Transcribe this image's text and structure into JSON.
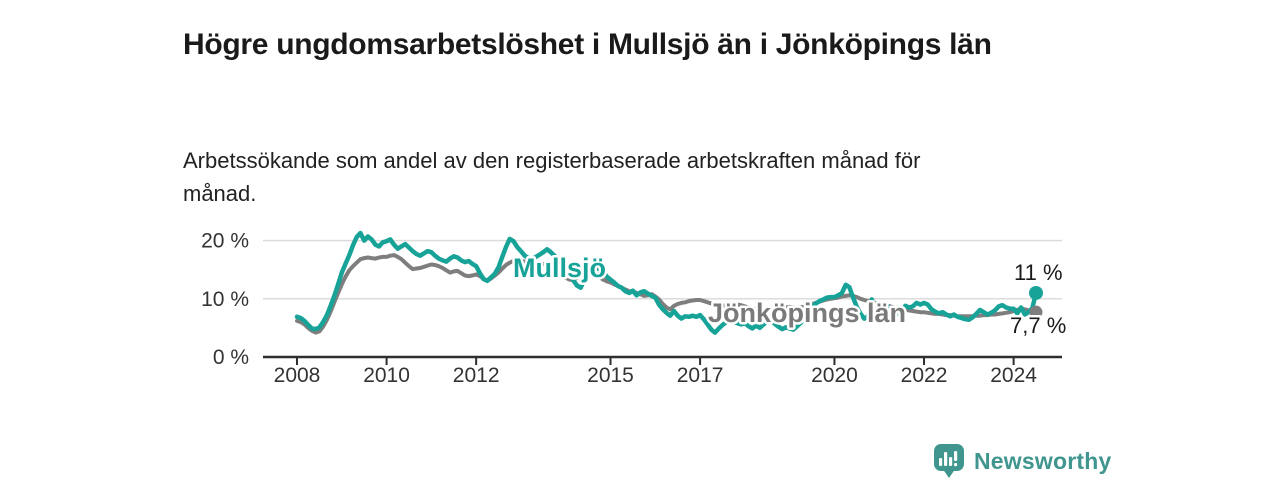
{
  "title": "Högre ungdomsarbetslöshet i Mullsjö än i Jönköpings län",
  "subtitle": "Arbetssökande som andel av den registerbaserade arbetskraften månad för månad.",
  "branding": {
    "logo_text": "Newsworthy",
    "logo_icon": "bar-chart-speech-bubble-icon",
    "logo_color": "#40968f"
  },
  "colors": {
    "mullsjo_teal": "#17a398",
    "jonkoping_gray": "#7e7e7e",
    "gridline": "#dcdcdc",
    "axis": "#2e2e2e",
    "tick_label": "#333333",
    "annotation_text": "#1a1a1a"
  },
  "chart_data": {
    "type": "line",
    "x_start": "2008-01",
    "x_end": "2024-07",
    "x_unit": "month",
    "y_unit": "percent",
    "ylim": [
      0,
      22.5
    ],
    "grid": "horizontal",
    "y_tick_labels": [
      "0 %",
      "10 %",
      "20 %"
    ],
    "y_tick_values": [
      0,
      10,
      20
    ],
    "x_tick_labels": [
      "2008",
      "2010",
      "2012",
      "2015",
      "2017",
      "2020",
      "2022",
      "2024"
    ],
    "legend_position": "inline-labels-on-lines",
    "series": [
      {
        "name": "Mullsjö",
        "color": "#17a398",
        "end_label": "11 %",
        "end_value": 11.0,
        "values": [
          6.9,
          6.7,
          6.2,
          5.5,
          4.9,
          4.8,
          5.1,
          6.0,
          7.2,
          8.8,
          10.5,
          12.5,
          14.5,
          16.0,
          17.5,
          19.2,
          20.6,
          21.3,
          20.0,
          20.7,
          20.2,
          19.3,
          19.0,
          19.7,
          19.9,
          20.2,
          19.3,
          18.6,
          19.0,
          19.4,
          18.8,
          18.2,
          17.7,
          17.4,
          17.8,
          18.2,
          18.0,
          17.4,
          16.9,
          16.6,
          16.4,
          16.9,
          17.3,
          17.1,
          16.6,
          16.3,
          16.5,
          16.0,
          15.6,
          14.4,
          13.4,
          13.1,
          13.7,
          14.3,
          15.4,
          17.2,
          18.9,
          20.3,
          19.9,
          18.9,
          18.2,
          17.4,
          17.0,
          16.8,
          17.2,
          17.6,
          18.0,
          18.5,
          18.0,
          17.4,
          16.8,
          16.3,
          15.8,
          14.5,
          13.2,
          12.3,
          11.9,
          13.3,
          14.8,
          15.6,
          15.3,
          15.1,
          14.7,
          13.8,
          13.3,
          12.8,
          12.2,
          11.9,
          11.3,
          11.0,
          11.4,
          10.6,
          11.1,
          11.3,
          10.9,
          10.5,
          10.2,
          9.0,
          8.2,
          7.6,
          7.1,
          7.9,
          7.1,
          6.6,
          7.0,
          6.9,
          7.1,
          6.9,
          7.2,
          6.5,
          5.6,
          4.7,
          4.2,
          4.9,
          5.5,
          6.0,
          6.3,
          6.1,
          5.8,
          5.6,
          5.8,
          5.3,
          4.9,
          5.4,
          5.0,
          5.6,
          6.1,
          6.3,
          5.7,
          5.2,
          4.8,
          5.1,
          4.9,
          4.7,
          5.3,
          5.9,
          6.9,
          7.9,
          8.7,
          9.2,
          9.6,
          9.9,
          10.2,
          10.3,
          10.3,
          10.6,
          11.0,
          12.4,
          12.0,
          10.2,
          8.6,
          7.4,
          6.6,
          7.0,
          9.9,
          7.8,
          9.0,
          7.8,
          9.0,
          7.6,
          8.2,
          7.4,
          8.0,
          8.8,
          8.5,
          8.7,
          9.3,
          9.0,
          9.3,
          9.0,
          8.2,
          7.8,
          7.5,
          7.7,
          7.3,
          7.0,
          7.3,
          6.9,
          6.7,
          6.5,
          6.4,
          6.8,
          7.4,
          8.1,
          7.7,
          7.3,
          7.6,
          8.0,
          8.7,
          8.9,
          8.5,
          8.3,
          8.3,
          7.5,
          8.5,
          7.3,
          7.7,
          8.4,
          11.0
        ]
      },
      {
        "name": "Jönköpings län",
        "color": "#7e7e7e",
        "end_label": "7,7 %",
        "end_value": 7.7,
        "values": [
          6.2,
          6.0,
          5.6,
          5.0,
          4.5,
          4.2,
          4.4,
          5.2,
          6.4,
          7.8,
          9.4,
          11.0,
          12.5,
          13.8,
          14.9,
          15.6,
          16.2,
          16.8,
          17.0,
          17.1,
          17.0,
          16.9,
          17.1,
          17.2,
          17.2,
          17.4,
          17.5,
          17.2,
          16.8,
          16.2,
          15.6,
          15.1,
          15.2,
          15.3,
          15.5,
          15.7,
          15.9,
          15.8,
          15.6,
          15.3,
          14.9,
          14.5,
          14.7,
          14.8,
          14.4,
          14.0,
          13.9,
          14.0,
          14.2,
          13.9,
          13.4,
          13.1,
          13.5,
          14.0,
          14.5,
          15.2,
          15.8,
          16.2,
          16.5,
          16.7,
          16.6,
          16.4,
          16.1,
          15.9,
          15.8,
          15.9,
          16.0,
          15.8,
          15.5,
          15.0,
          14.4,
          13.8,
          13.6,
          13.3,
          13.2,
          13.6,
          13.9,
          14.3,
          14.5,
          14.4,
          14.2,
          13.8,
          13.3,
          13.0,
          12.8,
          12.5,
          12.2,
          11.9,
          11.6,
          11.3,
          11.3,
          11.0,
          10.8,
          10.5,
          10.6,
          10.8,
          10.4,
          9.9,
          9.1,
          8.5,
          8.2,
          8.8,
          9.1,
          9.3,
          9.4,
          9.6,
          9.7,
          9.8,
          9.8,
          9.6,
          9.4,
          9.2,
          9.0,
          8.9,
          8.8,
          8.9,
          9.0,
          9.1,
          9.0,
          8.9,
          8.7,
          8.5,
          8.3,
          8.2,
          8.1,
          8.0,
          8.0,
          8.1,
          8.2,
          8.3,
          8.4,
          8.5,
          8.6,
          8.5,
          8.4,
          8.5,
          8.7,
          8.9,
          9.1,
          9.3,
          9.5,
          9.7,
          9.9,
          10.0,
          10.1,
          10.2,
          10.4,
          10.5,
          10.6,
          10.5,
          10.3,
          10.0,
          9.8,
          9.6,
          9.4,
          9.3,
          9.2,
          9.0,
          8.8,
          8.7,
          8.5,
          8.4,
          8.2,
          8.1,
          8.0,
          7.9,
          7.8,
          7.7,
          7.7,
          7.6,
          7.5,
          7.4,
          7.4,
          7.3,
          7.2,
          7.2,
          7.1,
          7.0,
          7.0,
          7.0,
          7.0,
          7.0,
          7.1,
          7.1,
          7.2,
          7.2,
          7.3,
          7.3,
          7.4,
          7.5,
          7.6,
          7.7,
          7.9,
          8.1,
          8.3,
          8.2,
          8.0,
          7.8,
          7.7
        ]
      }
    ]
  }
}
